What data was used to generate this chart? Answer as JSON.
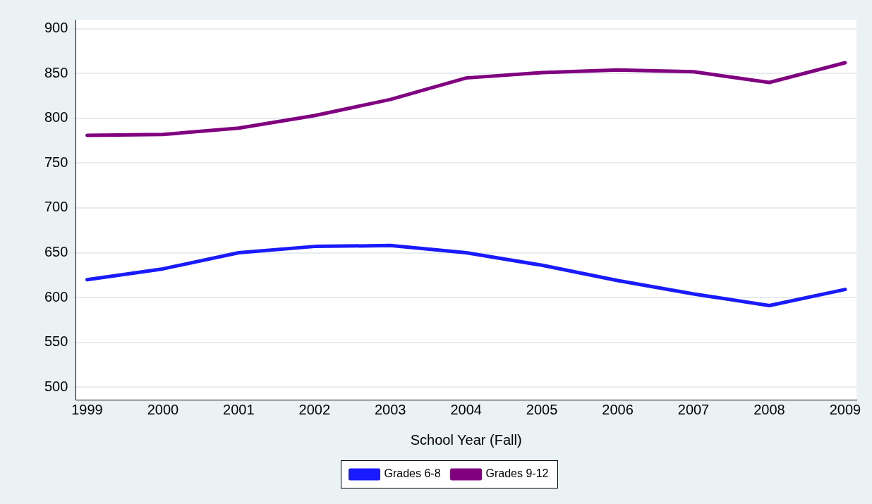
{
  "chart_data": {
    "type": "line",
    "xlabel": "School Year (Fall)",
    "x": [
      1999,
      2000,
      2001,
      2002,
      2003,
      2004,
      2005,
      2006,
      2007,
      2008,
      2009
    ],
    "series": [
      {
        "name": "Grades 6-8",
        "color": "#1a1aff",
        "values": [
          620,
          632,
          650,
          657,
          658,
          650,
          636,
          619,
          604,
          591,
          609
        ]
      },
      {
        "name": "Grades 9-12",
        "color": "#800080",
        "values": [
          781,
          782,
          789,
          803,
          821,
          845,
          851,
          854,
          852,
          840,
          862
        ]
      }
    ],
    "xlim": [
      1998.85,
      2009.15
    ],
    "xticks": [
      1999,
      2000,
      2001,
      2002,
      2003,
      2004,
      2005,
      2006,
      2007,
      2008,
      2009
    ],
    "ylim": [
      486,
      910
    ],
    "yticks": [
      500,
      550,
      600,
      650,
      700,
      750,
      800,
      850,
      900
    ],
    "grid": "y",
    "legend": "bottom",
    "marker": "none",
    "line_style": "solid"
  }
}
